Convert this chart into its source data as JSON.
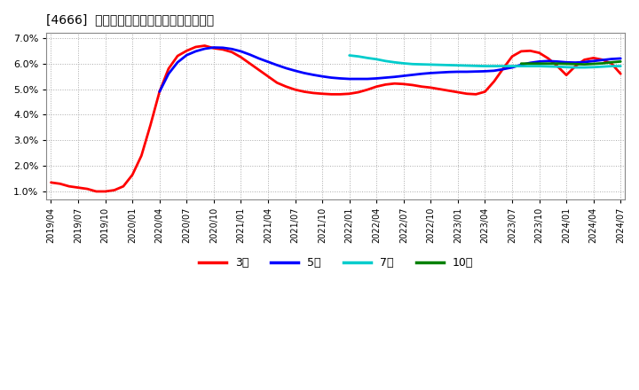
{
  "title": "[4666]  経常利益マージンの標準偏差の推移",
  "background_color": "#ffffff",
  "plot_bg_color": "#ffffff",
  "grid_color": "#aaaaaa",
  "ylim": [
    0.007,
    0.072
  ],
  "yticks": [
    0.01,
    0.02,
    0.03,
    0.04,
    0.05,
    0.06,
    0.07
  ],
  "series": {
    "3年": {
      "color": "#ff0000",
      "linewidth": 2.0,
      "x": [
        0,
        1,
        2,
        3,
        4,
        5,
        6,
        7,
        8,
        9,
        10,
        11,
        12,
        13,
        14,
        15,
        16,
        17,
        18,
        19,
        20,
        21,
        22,
        23,
        24,
        25,
        26,
        27,
        28,
        29,
        30,
        31,
        32,
        33,
        34,
        35,
        36,
        37,
        38,
        39,
        40,
        41,
        42,
        43,
        44,
        45,
        46,
        47,
        48,
        49,
        50,
        51,
        52,
        53,
        54,
        55,
        56,
        57,
        58,
        59,
        60,
        61,
        62,
        63
      ],
      "y": [
        0.0135,
        0.013,
        0.012,
        0.0115,
        0.011,
        0.01,
        0.01,
        0.0105,
        0.012,
        0.0165,
        0.024,
        0.036,
        0.049,
        0.058,
        0.063,
        0.065,
        0.0665,
        0.067,
        0.066,
        0.0655,
        0.0645,
        0.0625,
        0.06,
        0.0575,
        0.055,
        0.0525,
        0.051,
        0.0498,
        0.049,
        0.0485,
        0.0482,
        0.048,
        0.048,
        0.0482,
        0.0488,
        0.0498,
        0.051,
        0.0518,
        0.0522,
        0.052,
        0.0516,
        0.051,
        0.0506,
        0.05,
        0.0494,
        0.0488,
        0.0482,
        0.048,
        0.049,
        0.053,
        0.058,
        0.0628,
        0.0648,
        0.065,
        0.0642,
        0.062,
        0.059,
        0.0555,
        0.059,
        0.0615,
        0.0622,
        0.0615,
        0.06,
        0.056
      ]
    },
    "5年": {
      "color": "#0000ff",
      "linewidth": 2.0,
      "x": [
        12,
        13,
        14,
        15,
        16,
        17,
        18,
        19,
        20,
        21,
        22,
        23,
        24,
        25,
        26,
        27,
        28,
        29,
        30,
        31,
        32,
        33,
        34,
        35,
        36,
        37,
        38,
        39,
        40,
        41,
        42,
        43,
        44,
        45,
        46,
        47,
        48,
        49,
        50,
        51,
        52,
        53,
        54,
        55,
        56,
        57,
        58,
        59,
        60,
        61,
        62,
        63
      ],
      "y": [
        0.049,
        0.056,
        0.0605,
        0.0633,
        0.0648,
        0.0658,
        0.0663,
        0.0662,
        0.0657,
        0.0648,
        0.0635,
        0.062,
        0.0607,
        0.0594,
        0.0582,
        0.0572,
        0.0563,
        0.0556,
        0.055,
        0.0545,
        0.0542,
        0.054,
        0.054,
        0.054,
        0.0542,
        0.0545,
        0.0548,
        0.0552,
        0.0556,
        0.056,
        0.0563,
        0.0565,
        0.0567,
        0.0568,
        0.0568,
        0.0569,
        0.057,
        0.0572,
        0.0578,
        0.0585,
        0.0595,
        0.0603,
        0.0608,
        0.061,
        0.0608,
        0.0605,
        0.0604,
        0.0606,
        0.061,
        0.0614,
        0.0618,
        0.062
      ]
    },
    "7年": {
      "color": "#00cccc",
      "linewidth": 2.0,
      "x": [
        33,
        34,
        35,
        36,
        37,
        38,
        39,
        40,
        41,
        42,
        43,
        44,
        45,
        46,
        47,
        48,
        49,
        50,
        51,
        52,
        53,
        54,
        55,
        56,
        57,
        58,
        59,
        60,
        61,
        62,
        63
      ],
      "y": [
        0.0632,
        0.0628,
        0.0622,
        0.0617,
        0.061,
        0.0605,
        0.0601,
        0.0598,
        0.0597,
        0.0596,
        0.0595,
        0.0594,
        0.0593,
        0.0592,
        0.0591,
        0.059,
        0.059,
        0.059,
        0.059,
        0.059,
        0.059,
        0.059,
        0.0589,
        0.0588,
        0.0586,
        0.0585,
        0.0585,
        0.0586,
        0.0588,
        0.059,
        0.059
      ]
    },
    "10年": {
      "color": "#008000",
      "linewidth": 2.0,
      "x": [
        52,
        53,
        54,
        55,
        56,
        57,
        58,
        59,
        60,
        61,
        62,
        63
      ],
      "y": [
        0.06,
        0.06,
        0.06,
        0.06,
        0.06,
        0.0599,
        0.0598,
        0.0597,
        0.0599,
        0.0601,
        0.0605,
        0.0608
      ]
    }
  },
  "xtick_labels": [
    "2019/04",
    "2019/07",
    "2019/10",
    "2020/01",
    "2020/04",
    "2020/07",
    "2020/10",
    "2021/01",
    "2021/04",
    "2021/07",
    "2021/10",
    "2022/01",
    "2022/04",
    "2022/07",
    "2022/10",
    "2023/01",
    "2023/04",
    "2023/07",
    "2023/10",
    "2024/01",
    "2024/04",
    "2024/07"
  ],
  "xtick_positions": [
    0,
    3,
    6,
    9,
    12,
    15,
    18,
    21,
    24,
    27,
    30,
    33,
    36,
    39,
    42,
    45,
    48,
    51,
    54,
    57,
    60,
    63
  ],
  "legend_labels": [
    "3年",
    "5年",
    "7年",
    "10年"
  ],
  "legend_colors": [
    "#ff0000",
    "#0000ff",
    "#00cccc",
    "#008000"
  ]
}
